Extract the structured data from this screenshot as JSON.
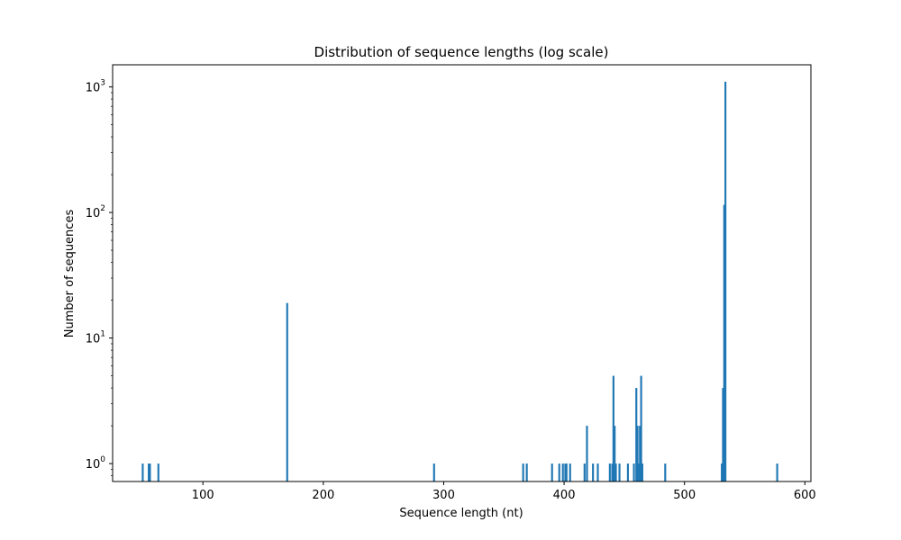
{
  "chart_data": {
    "type": "bar",
    "title": "Distribution of sequence lengths (log scale)",
    "xlabel": "Sequence length (nt)",
    "ylabel": "Number of sequences",
    "xlim": [
      25,
      605
    ],
    "ylim": [
      0.72,
      1500
    ],
    "yscale": "log",
    "grid": false,
    "color": "#1f77b4",
    "x_ticks": [
      100,
      200,
      300,
      400,
      500,
      600
    ],
    "y_ticks": [
      {
        "value": 1,
        "base": "10",
        "exp": "0"
      },
      {
        "value": 10,
        "base": "10",
        "exp": "1"
      },
      {
        "value": 100,
        "base": "10",
        "exp": "2"
      },
      {
        "value": 1000,
        "base": "10",
        "exp": "3"
      }
    ],
    "bin_width": 1.6,
    "bars": [
      {
        "x": 50,
        "y": 1
      },
      {
        "x": 55,
        "y": 1
      },
      {
        "x": 56,
        "y": 1
      },
      {
        "x": 63,
        "y": 1
      },
      {
        "x": 170,
        "y": 19
      },
      {
        "x": 292,
        "y": 1
      },
      {
        "x": 366,
        "y": 1
      },
      {
        "x": 369,
        "y": 1
      },
      {
        "x": 390,
        "y": 1
      },
      {
        "x": 396,
        "y": 1
      },
      {
        "x": 399,
        "y": 1
      },
      {
        "x": 401,
        "y": 1
      },
      {
        "x": 402,
        "y": 1
      },
      {
        "x": 405,
        "y": 1
      },
      {
        "x": 417,
        "y": 1
      },
      {
        "x": 419,
        "y": 2
      },
      {
        "x": 424,
        "y": 1
      },
      {
        "x": 428,
        "y": 1
      },
      {
        "x": 438,
        "y": 1
      },
      {
        "x": 440,
        "y": 1
      },
      {
        "x": 441,
        "y": 5
      },
      {
        "x": 442,
        "y": 2
      },
      {
        "x": 443,
        "y": 1
      },
      {
        "x": 446,
        "y": 1
      },
      {
        "x": 453,
        "y": 1
      },
      {
        "x": 458,
        "y": 1
      },
      {
        "x": 460,
        "y": 4
      },
      {
        "x": 461,
        "y": 2
      },
      {
        "x": 462,
        "y": 1
      },
      {
        "x": 463,
        "y": 2
      },
      {
        "x": 464,
        "y": 5
      },
      {
        "x": 465,
        "y": 1
      },
      {
        "x": 484,
        "y": 1
      },
      {
        "x": 531,
        "y": 1
      },
      {
        "x": 532,
        "y": 4
      },
      {
        "x": 533,
        "y": 115
      },
      {
        "x": 534,
        "y": 1100
      },
      {
        "x": 577,
        "y": 1
      }
    ]
  }
}
